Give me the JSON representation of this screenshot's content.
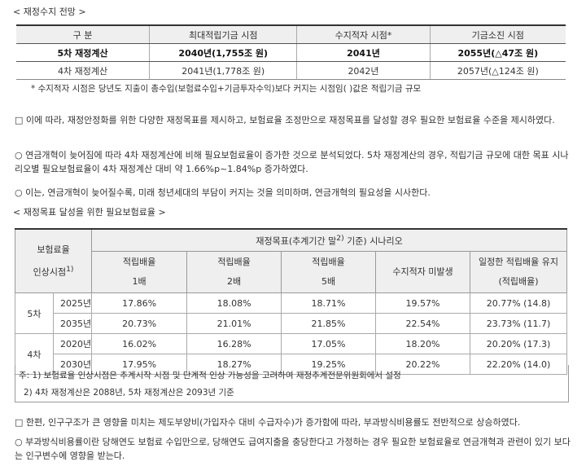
{
  "sections": {
    "s1": "< 재정수지 전망 >",
    "s2": "< 재정목표 달성을 위한 필요보험료율 >"
  },
  "table1": {
    "headers": [
      "구 분",
      "최대적립기금 시점",
      "수지적자 시점*",
      "기금소진 시점"
    ],
    "rows": [
      [
        "5차 재정계산",
        "2040년(1,755조 원)",
        "2041년",
        "2055년(△47조 원)"
      ],
      [
        "4차 재정계산",
        "2041년(1,778조 원)",
        "2042년",
        "2057년(△124조 원)"
      ]
    ],
    "note": "* 수지적자 시점은 당년도 지출이 총수입(보험료수입+기금투자수익)보다 커지는 시점임( )값은 적립기금 규모"
  },
  "paragraphs": {
    "p1": "□ 이에 따라, 재정안정화를 위한 다양한 재정목표를 제시하고, 보험료율 조정만으로 재정목표를 달성할 경우 필요한 보험료율 수준을 제시하였다.",
    "p2": "○ 연금개혁이 늦어짐에 따라 4차 재정계산에 비해 필요보험료율이 증가한 것으로 분석되었다. 5차 재정계산의 경우, 적립기금 규모에 대한 목표 시나리오별 필요보험료율이 4차 재정계산 대비 약 1.66%p~1.84%p 증가하였다.",
    "p3": "○ 이는, 연금개혁이 늦어질수록, 미래 청년세대의 부담이 커지는 것을 의미하며, 연금개혁의 필요성을 시사한다.",
    "p4": "□ 한편, 인구구조가 큰 영향을 미치는 제도부양비(가입자수 대비 수급자수)가 증가함에 따라, 부과방식비용률도 전반적으로 상승하였다.",
    "p5": "○ 부과방식비용률이란 당해연도 보험료 수입만으로, 당해연도 급여지출을 충당한다고 가정하는 경우 필요한 보험료율로 연금개혁과 관련이 있기 보다는 인구변수에 영향을 받는다."
  },
  "table2": {
    "corner_line1": "보험료율",
    "corner_line2": "인상시점",
    "corner_sup": "1)",
    "scenario_title_pre": "재정목표(추계기간 말",
    "scenario_title_sup": "2)",
    "scenario_title_post": " 기준) 시나리오",
    "columns": [
      {
        "line1": "적립배율",
        "line2": "1배"
      },
      {
        "line1": "적립배율",
        "line2": "2배"
      },
      {
        "line1": "적립배율",
        "line2": "5배"
      },
      {
        "line1": "수지적자 미발생",
        "line2": ""
      },
      {
        "line1": "일정한 적립배율 유지",
        "line2": "(적립배율)"
      }
    ],
    "groups": [
      {
        "label": "5차",
        "rows": [
          {
            "year": "2025년",
            "values": [
              "17.86%",
              "18.08%",
              "18.71%",
              "19.57%",
              "20.77% (14.8)"
            ]
          },
          {
            "year": "2035년",
            "values": [
              "20.73%",
              "21.01%",
              "21.85%",
              "22.54%",
              "23.73% (11.7)"
            ]
          }
        ]
      },
      {
        "label": "4차",
        "rows": [
          {
            "year": "2020년",
            "values": [
              "16.02%",
              "16.28%",
              "17.05%",
              "18.20%",
              "20.20% (17.3)"
            ]
          },
          {
            "year": "2030년",
            "values": [
              "17.95%",
              "18.27%",
              "19.25%",
              "20.22%",
              "22.20% (14.0)"
            ]
          }
        ]
      }
    ],
    "notes": [
      "주: 1) 보험료율 인상시점은 추계시작 시점 및 단계적 인상 가능성을 고려하여 재정추계전문위원회에서 설정",
      "2) 4차 재정계산은 2088년, 5차 재정계산은 2093년 기준"
    ]
  }
}
